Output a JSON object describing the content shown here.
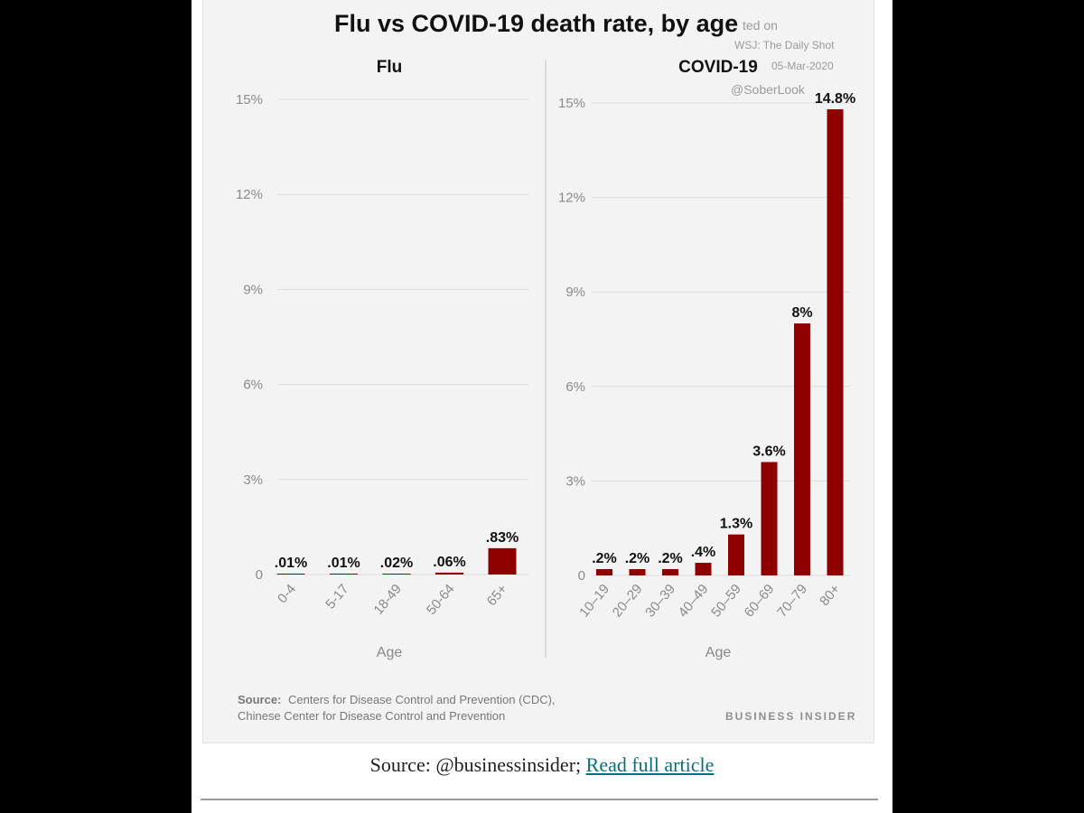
{
  "chart_data": {
    "title": "Flu vs COVID-19 death rate, by age",
    "y_ticks": [
      "15%",
      "12%",
      "9%",
      "6%",
      "3%",
      "0"
    ],
    "ylim": [
      0,
      15
    ],
    "grid": true,
    "panels": [
      {
        "type": "bar",
        "title": "Flu",
        "xlabel": "Age",
        "categories": [
          "0-4",
          "5-17",
          "18-49",
          "50-64",
          "65+"
        ],
        "values": [
          0.01,
          0.01,
          0.02,
          0.06,
          0.83
        ],
        "value_labels": [
          ".01%",
          ".01%",
          ".02%",
          ".06%",
          ".83%"
        ]
      },
      {
        "type": "bar",
        "title": "COVID-19",
        "xlabel": "Age",
        "categories": [
          "10–19",
          "20–29",
          "30–39",
          "40–49",
          "50–59",
          "60–69",
          "70–79",
          "80+"
        ],
        "values": [
          0.2,
          0.2,
          0.2,
          0.4,
          1.3,
          3.6,
          8,
          14.8
        ],
        "value_labels": [
          ".2%",
          ".2%",
          ".2%",
          ".4%",
          "1.3%",
          "3.6%",
          "8%",
          "14.8%"
        ]
      }
    ],
    "bar_color": "#8e0000",
    "source_label": "Source:",
    "source_text_1": "Centers for Disease Control and Prevention (CDC),",
    "source_text_2": "Chinese Center for Disease Control and Prevention",
    "brand": "BUSINESS INSIDER",
    "watermark": [
      "ted on",
      "WSJ: The Daily Shot",
      "05-Mar-2020",
      "@SoberLook"
    ]
  },
  "caption": {
    "prefix": "Source: @businessinsider;",
    "link_text": "Read full article"
  }
}
